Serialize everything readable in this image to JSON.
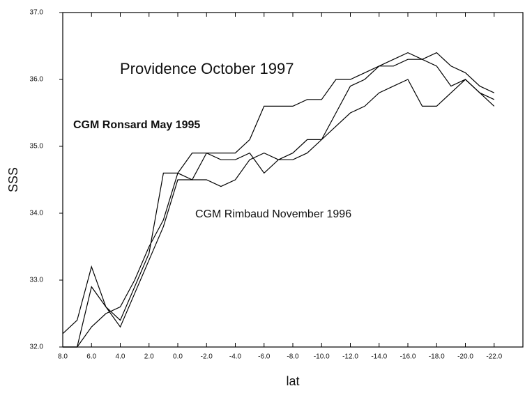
{
  "chart_data": {
    "type": "line",
    "annotations": [
      "Providence October 1997",
      "CGM Ronsard May 1995",
      "CGM Rimbaud November 1996"
    ],
    "xlabel": "lat",
    "ylabel": "SSS",
    "x": [
      8,
      7,
      6,
      5,
      4,
      3,
      2,
      1,
      0,
      -1,
      -2,
      -3,
      -4,
      -5,
      -6,
      -7,
      -8,
      -9,
      -10,
      -11,
      -12,
      -13,
      -14,
      -15,
      -16,
      -17,
      -18,
      -19,
      -20,
      -21,
      -22
    ],
    "series": [
      {
        "name": "Providence October 1997",
        "color": "#000000",
        "values": [
          32.0,
          32.0,
          32.3,
          32.5,
          32.6,
          33.0,
          33.5,
          33.9,
          34.6,
          34.9,
          34.9,
          34.9,
          34.9,
          35.1,
          35.6,
          35.6,
          35.6,
          35.7,
          35.7,
          36.0,
          36.0,
          36.1,
          36.2,
          36.3,
          36.4,
          36.3,
          36.4,
          36.2,
          36.1,
          35.9,
          35.8
        ]
      },
      {
        "name": "CGM Ronsard May 1995",
        "color": "#000000",
        "values": [
          32.2,
          32.4,
          33.2,
          32.6,
          32.4,
          32.9,
          33.4,
          34.6,
          34.6,
          34.5,
          34.9,
          34.8,
          34.8,
          34.9,
          34.6,
          34.8,
          34.8,
          34.9,
          35.1,
          35.5,
          35.9,
          36.0,
          36.2,
          36.2,
          36.3,
          36.3,
          36.2,
          35.9,
          36.0,
          35.8,
          35.6
        ]
      },
      {
        "name": "CGM Rimbaud November 1996",
        "color": "#000000",
        "values": [
          32.0,
          32.0,
          32.9,
          32.6,
          32.3,
          32.8,
          33.3,
          33.8,
          34.5,
          34.5,
          34.5,
          34.4,
          34.5,
          34.8,
          34.9,
          34.8,
          34.9,
          35.1,
          35.1,
          35.3,
          35.5,
          35.6,
          35.8,
          35.9,
          36.0,
          35.6,
          35.6,
          35.8,
          36.0,
          35.8,
          35.7
        ]
      }
    ],
    "xlim": [
      8,
      -24
    ],
    "xticks": [
      {
        "value": 8,
        "label": "8.0"
      },
      {
        "value": 6,
        "label": "6.0"
      },
      {
        "value": 4,
        "label": "4.0"
      },
      {
        "value": 2,
        "label": "2.0"
      },
      {
        "value": 0,
        "label": "0.0"
      },
      {
        "value": -2,
        "label": "-2.0"
      },
      {
        "value": -4,
        "label": "-4.0"
      },
      {
        "value": -6,
        "label": "-6.0"
      },
      {
        "value": -8,
        "label": "-8.0"
      },
      {
        "value": -10,
        "label": "-10.0"
      },
      {
        "value": -12,
        "label": "-12.0"
      },
      {
        "value": -14,
        "label": "-14.0"
      },
      {
        "value": -16,
        "label": "-16.0"
      },
      {
        "value": -18,
        "label": "-18.0"
      },
      {
        "value": -20,
        "label": "-20.0"
      },
      {
        "value": -22,
        "label": "-22.0"
      }
    ],
    "ylim": [
      32,
      37
    ],
    "yticks": [
      {
        "value": 32,
        "label": "32.0"
      },
      {
        "value": 33,
        "label": "33.0"
      },
      {
        "value": 34,
        "label": "34.0"
      },
      {
        "value": 35,
        "label": "35.0"
      },
      {
        "value": 36,
        "label": "36.0"
      },
      {
        "value": 37,
        "label": "37.0"
      }
    ],
    "grid": false
  }
}
